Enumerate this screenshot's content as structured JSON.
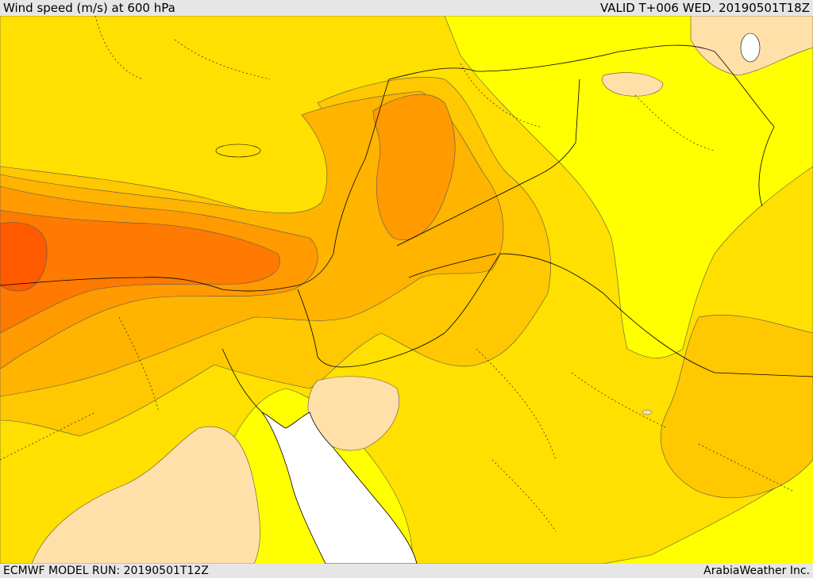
{
  "header": {
    "title": "Wind speed (m/s) at 600 hPa",
    "valid": "VALID T+006 WED. 20190501T18Z"
  },
  "footer": {
    "model_run": "ECMWF MODEL RUN: 20190501T12Z",
    "credit": "ArabiaWeather Inc."
  },
  "colors": {
    "background_field": "#ffff00",
    "calm": "#ffe0a8",
    "yellow_orange": "#ffe000",
    "gold": "#ffc800",
    "light_orange": "#ffb400",
    "orange": "#ff9a00",
    "dark_orange": "#ff7a00",
    "red_orange": "#ff5a00",
    "water": "#ffffff",
    "contour": "#555555",
    "border": "#000000"
  }
}
